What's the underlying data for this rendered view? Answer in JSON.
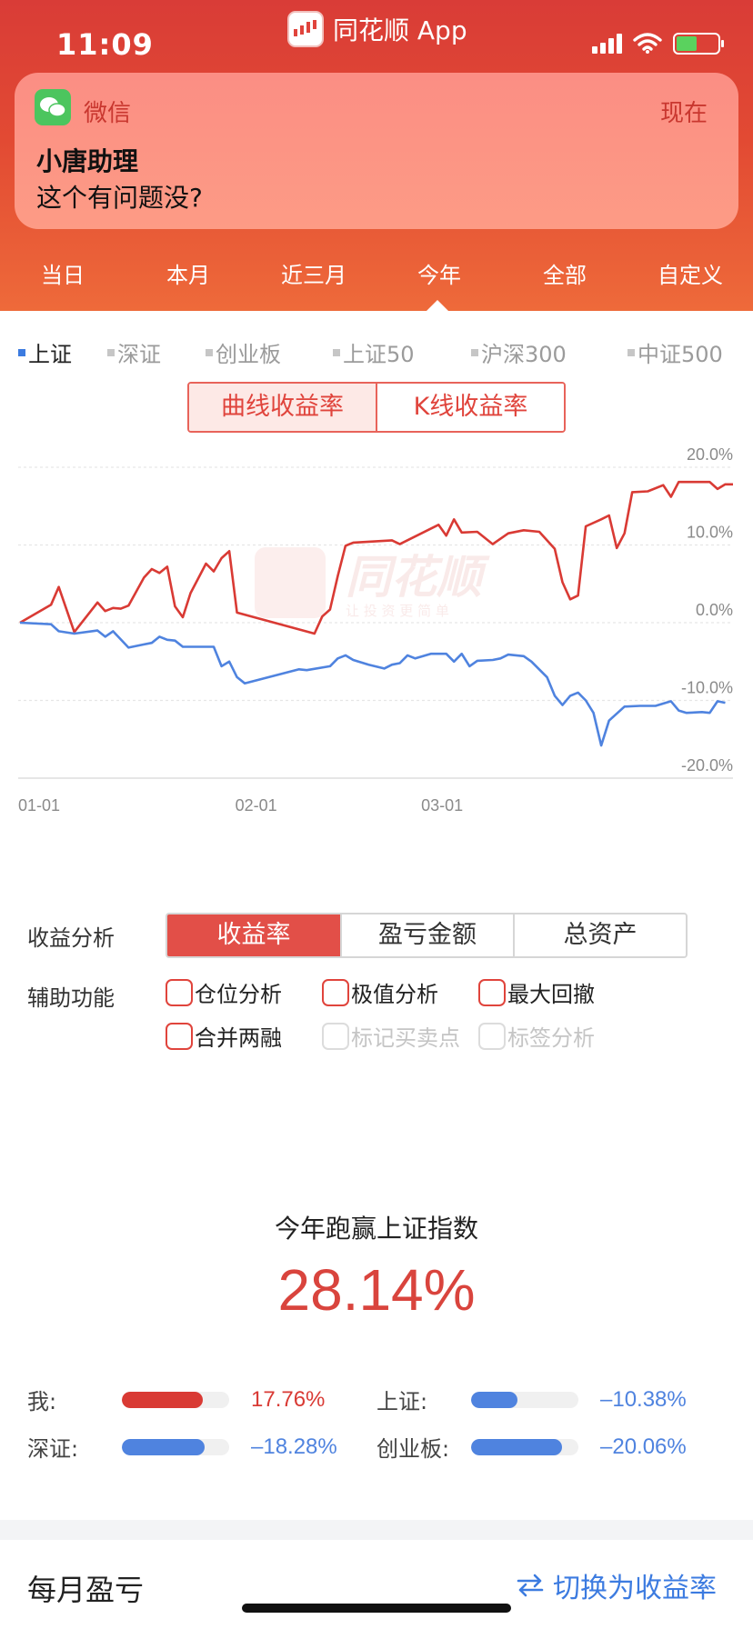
{
  "status_bar": {
    "time": "11:09",
    "app_name": "同花顺 App"
  },
  "notification": {
    "app": "微信",
    "time": "现在",
    "title": "小唐助理",
    "body": "这个有问题没?"
  },
  "period_tabs": [
    {
      "label": "当日"
    },
    {
      "label": "本月"
    },
    {
      "label": "近三月"
    },
    {
      "label": "今年",
      "active": true
    },
    {
      "label": "全部"
    },
    {
      "label": "自定义"
    }
  ],
  "index_tabs": [
    {
      "label": "上证",
      "active": true
    },
    {
      "label": "深证"
    },
    {
      "label": "创业板"
    },
    {
      "label": "上证50"
    },
    {
      "label": "沪深300"
    },
    {
      "label": "中证500"
    }
  ],
  "chart_mode": {
    "options": [
      "曲线收益率",
      "K线收益率"
    ],
    "active": 0
  },
  "watermark": {
    "brand": "同花顺",
    "slogan": "让 投 资 更 简 单"
  },
  "chart_data": {
    "type": "line",
    "y_ticks": [
      "20.0%",
      "10.0%",
      "0.0%",
      "-10.0%",
      "-20.0%"
    ],
    "x_ticks": [
      "01-01",
      "02-01",
      "03-01"
    ],
    "ylim": [
      -20,
      20
    ],
    "grid": true,
    "series": [
      {
        "color": "#d93a34",
        "points": [
          [
            0,
            0
          ],
          [
            4,
            2.3
          ],
          [
            5,
            4.6
          ],
          [
            7,
            -1.2
          ],
          [
            10,
            2.6
          ],
          [
            11,
            1.5
          ],
          [
            12,
            1.9
          ],
          [
            13,
            1.8
          ],
          [
            14,
            2.2
          ],
          [
            16,
            5.8
          ],
          [
            17,
            6.9
          ],
          [
            18,
            6.4
          ],
          [
            19,
            7.2
          ],
          [
            20,
            2.1
          ],
          [
            21,
            0.7
          ],
          [
            22,
            3.8
          ],
          [
            24,
            7.6
          ],
          [
            25,
            6.6
          ],
          [
            26,
            8.3
          ],
          [
            27,
            9.2
          ],
          [
            28,
            1.3
          ],
          [
            38,
            -1.4
          ],
          [
            39,
            0.8
          ],
          [
            40,
            1.7
          ],
          [
            41,
            6.0
          ],
          [
            42,
            9.9
          ],
          [
            43,
            10.3
          ],
          [
            48,
            10.6
          ],
          [
            49,
            10.1
          ],
          [
            54,
            12.6
          ],
          [
            55,
            11.2
          ],
          [
            56,
            13.3
          ],
          [
            57,
            11.6
          ],
          [
            59,
            11.7
          ],
          [
            61,
            10.1
          ],
          [
            63,
            11.5
          ],
          [
            65,
            11.9
          ],
          [
            67,
            11.7
          ],
          [
            69,
            9.5
          ],
          [
            70,
            5.2
          ],
          [
            71,
            3.0
          ],
          [
            72,
            3.5
          ],
          [
            73,
            12.4
          ],
          [
            75,
            13.3
          ],
          [
            76,
            13.8
          ],
          [
            77,
            9.6
          ],
          [
            78,
            11.5
          ],
          [
            79,
            16.8
          ],
          [
            81,
            16.9
          ],
          [
            83,
            17.7
          ],
          [
            84,
            16.2
          ],
          [
            85,
            18.1
          ],
          [
            89,
            18.1
          ],
          [
            90,
            17.2
          ],
          [
            91,
            17.8
          ],
          [
            92,
            17.8
          ]
        ]
      },
      {
        "color": "#4f83df",
        "points": [
          [
            0,
            0
          ],
          [
            4,
            -0.2
          ],
          [
            5,
            -1.1
          ],
          [
            7,
            -1.4
          ],
          [
            10,
            -1.0
          ],
          [
            11,
            -1.8
          ],
          [
            12,
            -1.1
          ],
          [
            14,
            -3.2
          ],
          [
            16,
            -2.8
          ],
          [
            17,
            -2.6
          ],
          [
            18,
            -1.8
          ],
          [
            19,
            -2.2
          ],
          [
            20,
            -2.3
          ],
          [
            21,
            -3.1
          ],
          [
            25,
            -3.1
          ],
          [
            26,
            -5.6
          ],
          [
            27,
            -5.0
          ],
          [
            28,
            -7.0
          ],
          [
            29,
            -7.8
          ],
          [
            36,
            -6.0
          ],
          [
            37,
            -6.1
          ],
          [
            40,
            -5.6
          ],
          [
            41,
            -4.6
          ],
          [
            42,
            -4.2
          ],
          [
            43,
            -4.8
          ],
          [
            45,
            -5.4
          ],
          [
            47,
            -5.9
          ],
          [
            48,
            -5.4
          ],
          [
            49,
            -5.2
          ],
          [
            50,
            -4.2
          ],
          [
            51,
            -4.6
          ],
          [
            53,
            -4.0
          ],
          [
            55,
            -4.0
          ],
          [
            56,
            -5.0
          ],
          [
            57,
            -4.0
          ],
          [
            58,
            -5.6
          ],
          [
            59,
            -4.9
          ],
          [
            61,
            -4.8
          ],
          [
            62,
            -4.6
          ],
          [
            63,
            -4.1
          ],
          [
            65,
            -4.3
          ],
          [
            66,
            -5.0
          ],
          [
            68,
            -7.0
          ],
          [
            69,
            -9.4
          ],
          [
            70,
            -10.6
          ],
          [
            71,
            -9.4
          ],
          [
            72,
            -9.0
          ],
          [
            73,
            -10.0
          ],
          [
            74,
            -11.6
          ],
          [
            75,
            -15.8
          ],
          [
            76,
            -12.6
          ],
          [
            78,
            -10.8
          ],
          [
            80,
            -10.7
          ],
          [
            82,
            -10.7
          ],
          [
            84,
            -10.1
          ],
          [
            85,
            -11.3
          ],
          [
            86,
            -11.6
          ],
          [
            88,
            -11.5
          ],
          [
            89,
            -11.6
          ],
          [
            90,
            -10.1
          ],
          [
            91,
            -10.3
          ]
        ]
      }
    ]
  },
  "analysis": {
    "label": "收益分析",
    "options": [
      "收益率",
      "盈亏金额",
      "总资产"
    ],
    "active": 0
  },
  "aux": {
    "label": "辅助功能",
    "items": [
      {
        "label": "仓位分析"
      },
      {
        "label": "极值分析"
      },
      {
        "label": "最大回撤"
      },
      {
        "label": "合并两融"
      },
      {
        "label": "标记买卖点",
        "disabled": true
      },
      {
        "label": "标签分析",
        "disabled": true
      }
    ]
  },
  "beat": {
    "title": "今年跑赢上证指数",
    "value": "28.14%"
  },
  "comparison": [
    {
      "label": "我:",
      "value": "17.76%",
      "level": 0.75,
      "color": "#d93a34"
    },
    {
      "label": "上证:",
      "value": "–10.38%",
      "level": 0.43,
      "color": "#4f83df"
    },
    {
      "label": "深证:",
      "value": "–18.28%",
      "level": 0.77,
      "color": "#4f83df"
    },
    {
      "label": "创业板:",
      "value": "–20.06%",
      "level": 0.85,
      "color": "#4f83df"
    }
  ],
  "monthly": {
    "title": "每月盈亏",
    "switch_label": "切换为收益率"
  }
}
